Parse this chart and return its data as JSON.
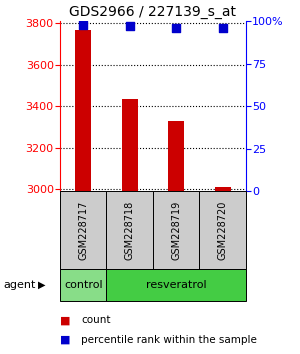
{
  "title": "GDS2966 / 227139_s_at",
  "samples": [
    "GSM228717",
    "GSM228718",
    "GSM228719",
    "GSM228720"
  ],
  "counts": [
    3770,
    3435,
    3330,
    3010
  ],
  "percentile_ranks": [
    98,
    97,
    96,
    96
  ],
  "ylim_left": [
    2990,
    3810
  ],
  "ylim_right": [
    0,
    100
  ],
  "yticks_left": [
    3000,
    3200,
    3400,
    3600,
    3800
  ],
  "yticks_right": [
    0,
    25,
    50,
    75,
    100
  ],
  "ytick_labels_right": [
    "0",
    "25",
    "50",
    "75",
    "100%"
  ],
  "bar_color": "#cc0000",
  "dot_color": "#0000cc",
  "ctrl_color": "#88dd88",
  "resv_color": "#44cc44",
  "agent_label": "agent",
  "legend_count_label": "count",
  "legend_pct_label": "percentile rank within the sample",
  "bg_color": "#ffffff",
  "sample_box_color": "#cccccc",
  "bar_width": 0.35,
  "dot_size": 30,
  "title_fontsize": 10,
  "tick_fontsize": 8,
  "sample_fontsize": 7,
  "group_fontsize": 8,
  "legend_fontsize": 7.5
}
